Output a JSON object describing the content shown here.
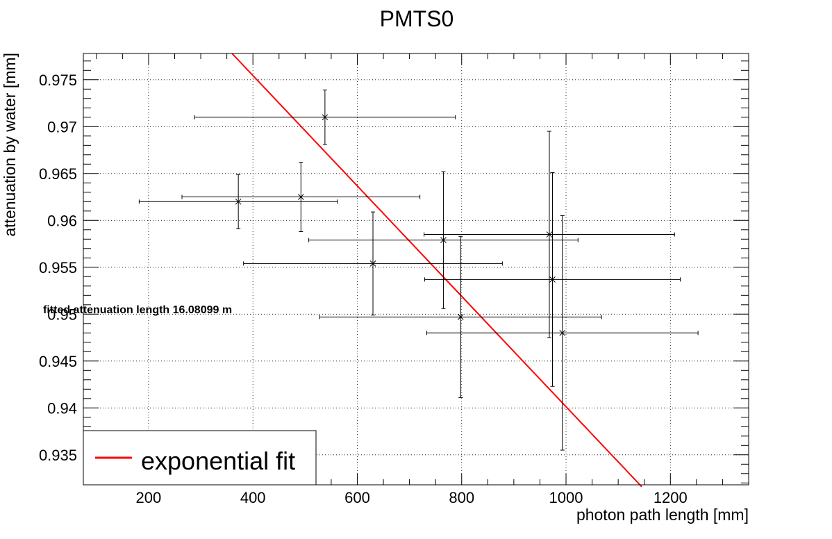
{
  "chart_data": {
    "type": "scatter",
    "title": "PMTS0",
    "xlabel": "photon path length [mm]",
    "ylabel": "attenuation by water [mm]",
    "xlim": [
      75,
      1350
    ],
    "ylim": [
      0.9318,
      0.9778
    ],
    "x_ticks": [
      200,
      400,
      600,
      800,
      1000,
      1200
    ],
    "x_tick_labels": [
      "200",
      "400",
      "600",
      "800",
      "1000",
      "1200"
    ],
    "y_ticks": [
      0.935,
      0.94,
      0.945,
      0.95,
      0.955,
      0.96,
      0.965,
      0.97,
      0.975
    ],
    "y_tick_labels": [
      "0.935",
      "0.94",
      "0.945",
      "0.95",
      "0.955",
      "0.96",
      "0.965",
      "0.97",
      "0.975"
    ],
    "grid": true,
    "legend_position": "bottom-left",
    "legend": [
      {
        "label": "exponential fit",
        "color": "#ff0000"
      }
    ],
    "annotation": "fitted attenuation length 16.08099 m",
    "points": [
      {
        "x": 538,
        "y": 0.971,
        "xerr": 250,
        "yerr": 0.0029
      },
      {
        "x": 372,
        "y": 0.962,
        "xerr": 190,
        "yerr": 0.0029
      },
      {
        "x": 492,
        "y": 0.9625,
        "xerr": 228,
        "yerr": 0.0037
      },
      {
        "x": 630,
        "y": 0.9554,
        "xerr": 248,
        "yerr": 0.0055
      },
      {
        "x": 765,
        "y": 0.9579,
        "xerr": 258,
        "yerr": 0.0073
      },
      {
        "x": 798,
        "y": 0.9497,
        "xerr": 270,
        "yerr": 0.0086
      },
      {
        "x": 968,
        "y": 0.9585,
        "xerr": 240,
        "yerr": 0.011
      },
      {
        "x": 974,
        "y": 0.9537,
        "xerr": 245,
        "yerr": 0.0114
      },
      {
        "x": 993,
        "y": 0.948,
        "xerr": 260,
        "yerr": 0.0125
      }
    ],
    "series": [
      {
        "type": "line",
        "color": "#ff0000",
        "x": [
          360,
          1145
        ],
        "y": [
          0.9778,
          0.9316
        ]
      }
    ],
    "series_color": "#000000"
  }
}
